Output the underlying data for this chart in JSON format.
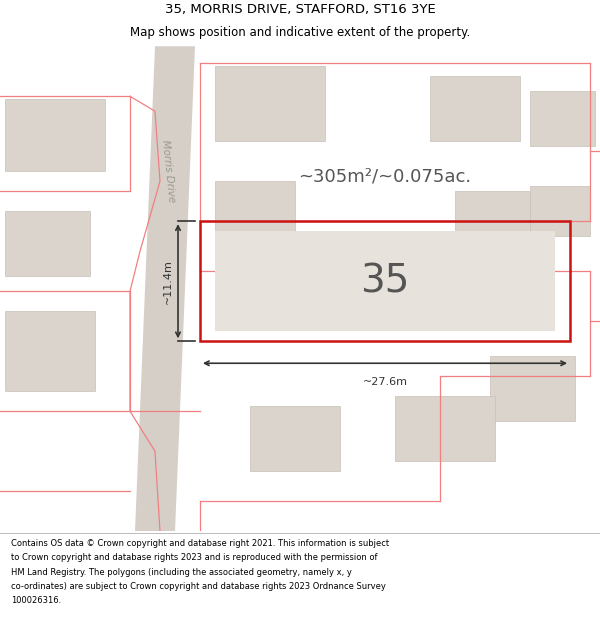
{
  "title_line1": "35, MORRIS DRIVE, STAFFORD, ST16 3YE",
  "title_line2": "Map shows position and indicative extent of the property.",
  "footer_lines": [
    "Contains OS data © Crown copyright and database right 2021. This information is subject",
    "to Crown copyright and database rights 2023 and is reproduced with the permission of",
    "HM Land Registry. The polygons (including the associated geometry, namely x, y",
    "co-ordinates) are subject to Crown copyright and database rights 2023 Ordnance Survey",
    "100026316."
  ],
  "map_bg": "#f7f3ef",
  "road_fill": "#d6cfc8",
  "building_fill": "#dbd4cc",
  "building_edge": "#c8c0b8",
  "boundary_color": "#f08080",
  "prop_edge": "#cc1111",
  "dim_color": "#333333",
  "road_label_color": "#999990",
  "area_text": "~305m²/~0.075ac.",
  "dim_width": "~27.6m",
  "dim_height": "~11.4m",
  "road_label": "Morris Drive",
  "title_fontsize": 9.5,
  "subtitle_fontsize": 8.5,
  "footer_fontsize": 6.0,
  "area_fontsize": 13,
  "num_fontsize": 28,
  "dim_fontsize": 8
}
